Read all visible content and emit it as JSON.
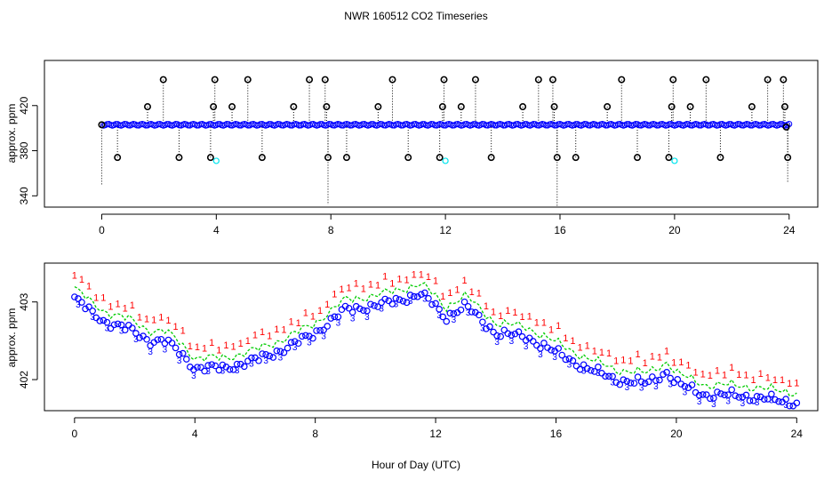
{
  "title": "NWR  160512  CO2 Timeseries",
  "colors": {
    "outlier": "#000000",
    "series_main": "#0000ff",
    "series_alt": "#00e5ee",
    "flag_red": "#ff0000",
    "series_green": "#00cc00",
    "dropline": "#000000"
  },
  "chart_data": [
    {
      "type": "scatter",
      "name": "top-panel",
      "title": "NWR  160512  CO2 Timeseries",
      "xlabel": "",
      "ylabel": "approx. ppm",
      "xlim": [
        -2,
        25
      ],
      "ylim": [
        330,
        460
      ],
      "xticks": [
        0,
        4,
        8,
        12,
        16,
        20,
        24
      ],
      "yticks": [
        340,
        380,
        420
      ],
      "baseline": 403,
      "outliers": [
        {
          "x": 0.0,
          "y": 403,
          "low": 350
        },
        {
          "x": 0.55,
          "y": 374
        },
        {
          "x": 1.6,
          "y": 419
        },
        {
          "x": 2.15,
          "y": 443
        },
        {
          "x": 2.7,
          "y": 374
        },
        {
          "x": 3.8,
          "y": 374
        },
        {
          "x": 3.9,
          "y": 419
        },
        {
          "x": 3.95,
          "y": 443
        },
        {
          "x": 4.55,
          "y": 419
        },
        {
          "x": 5.1,
          "y": 443
        },
        {
          "x": 5.6,
          "y": 374
        },
        {
          "x": 6.7,
          "y": 419
        },
        {
          "x": 7.25,
          "y": 443
        },
        {
          "x": 7.8,
          "y": 443
        },
        {
          "x": 7.85,
          "y": 419
        },
        {
          "x": 7.9,
          "y": 374,
          "low": 332
        },
        {
          "x": 8.55,
          "y": 374
        },
        {
          "x": 9.65,
          "y": 419
        },
        {
          "x": 10.15,
          "y": 443
        },
        {
          "x": 10.7,
          "y": 374
        },
        {
          "x": 11.8,
          "y": 374
        },
        {
          "x": 11.9,
          "y": 419
        },
        {
          "x": 11.95,
          "y": 443
        },
        {
          "x": 12.55,
          "y": 419
        },
        {
          "x": 13.05,
          "y": 443
        },
        {
          "x": 13.6,
          "y": 374
        },
        {
          "x": 14.7,
          "y": 419
        },
        {
          "x": 15.25,
          "y": 443
        },
        {
          "x": 15.75,
          "y": 443
        },
        {
          "x": 15.8,
          "y": 419
        },
        {
          "x": 15.9,
          "y": 374,
          "low": 330
        },
        {
          "x": 16.55,
          "y": 374
        },
        {
          "x": 17.65,
          "y": 419
        },
        {
          "x": 18.15,
          "y": 443
        },
        {
          "x": 18.7,
          "y": 374
        },
        {
          "x": 19.8,
          "y": 374
        },
        {
          "x": 19.9,
          "y": 419
        },
        {
          "x": 19.95,
          "y": 443
        },
        {
          "x": 20.55,
          "y": 419
        },
        {
          "x": 21.1,
          "y": 443
        },
        {
          "x": 21.6,
          "y": 374
        },
        {
          "x": 22.7,
          "y": 419
        },
        {
          "x": 23.25,
          "y": 443
        },
        {
          "x": 23.8,
          "y": 443
        },
        {
          "x": 23.85,
          "y": 419
        },
        {
          "x": 23.9,
          "y": 401
        },
        {
          "x": 23.95,
          "y": 374,
          "low": 352
        }
      ],
      "cyan_points": [
        {
          "x": 4.0,
          "y": 371
        },
        {
          "x": 12.0,
          "y": 371
        },
        {
          "x": 20.0,
          "y": 371
        }
      ]
    },
    {
      "type": "scatter",
      "name": "bottom-panel",
      "xlabel": "Hour of Day (UTC)",
      "ylabel": "approx. ppm",
      "xlim": [
        -1,
        24.7
      ],
      "ylim": [
        401.6,
        403.5
      ],
      "xticks": [
        0,
        4,
        8,
        12,
        16,
        20,
        24
      ],
      "yticks": [
        402.0,
        403.0
      ],
      "marker_blue": "3",
      "marker_red": "1",
      "shape_points": [
        {
          "x": 0.0,
          "y": 403.05
        },
        {
          "x": 0.6,
          "y": 402.85
        },
        {
          "x": 1.0,
          "y": 402.75
        },
        {
          "x": 1.8,
          "y": 402.65
        },
        {
          "x": 2.5,
          "y": 402.5
        },
        {
          "x": 3.0,
          "y": 402.5
        },
        {
          "x": 3.5,
          "y": 402.35
        },
        {
          "x": 4.0,
          "y": 402.15
        },
        {
          "x": 5.0,
          "y": 402.15
        },
        {
          "x": 6.0,
          "y": 402.25
        },
        {
          "x": 7.0,
          "y": 402.4
        },
        {
          "x": 8.0,
          "y": 402.6
        },
        {
          "x": 9.0,
          "y": 402.9
        },
        {
          "x": 10.0,
          "y": 402.95
        },
        {
          "x": 11.0,
          "y": 403.05
        },
        {
          "x": 11.5,
          "y": 403.1
        },
        {
          "x": 12.0,
          "y": 402.95
        },
        {
          "x": 12.3,
          "y": 402.8
        },
        {
          "x": 13.0,
          "y": 402.95
        },
        {
          "x": 14.0,
          "y": 402.6
        },
        {
          "x": 15.0,
          "y": 402.55
        },
        {
          "x": 16.0,
          "y": 402.35
        },
        {
          "x": 17.0,
          "y": 402.15
        },
        {
          "x": 18.0,
          "y": 402.0
        },
        {
          "x": 19.0,
          "y": 401.95
        },
        {
          "x": 19.7,
          "y": 402.1
        },
        {
          "x": 20.0,
          "y": 401.95
        },
        {
          "x": 21.0,
          "y": 401.8
        },
        {
          "x": 22.0,
          "y": 401.8
        },
        {
          "x": 23.0,
          "y": 401.75
        },
        {
          "x": 24.0,
          "y": 401.7
        }
      ]
    }
  ]
}
